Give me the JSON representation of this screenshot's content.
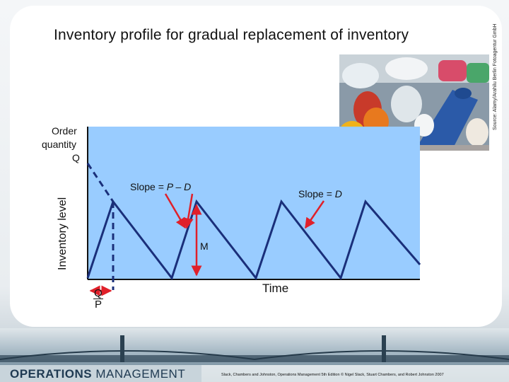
{
  "slide": {
    "title": "Inventory profile for gradual replacement of inventory",
    "photo_credit": "Source: Alamy/Arahilu Berlin Fotoagentur GmbH",
    "photo_icon": "plastic-bottles-photo"
  },
  "diagram": {
    "y_axis_label": "Inventory level",
    "order_quantity_line1": "Order",
    "order_quantity_line2": "quantity",
    "order_quantity_line3": "Q",
    "slope_build_prefix": "Slope = ",
    "slope_build_expr": "P – D",
    "slope_use_prefix": "Slope = ",
    "slope_use_expr": "D",
    "max_label": "M",
    "x_axis_label": "Time",
    "q_over_p_num": "Q",
    "q_over_p_den": "P",
    "plot_bg_color": "#99ccff",
    "line_color": "#1a2f7a",
    "arrow_color": "#e0202a"
  },
  "footer": {
    "logo_bold": "OPERATIONS",
    "logo_light": " MANAGEMENT",
    "citation": "Slack, Chambers and Johnston, Operations Management 5th Edition © Nigel Slack, Stuart Chambers, and Robert Johnston 2007"
  }
}
